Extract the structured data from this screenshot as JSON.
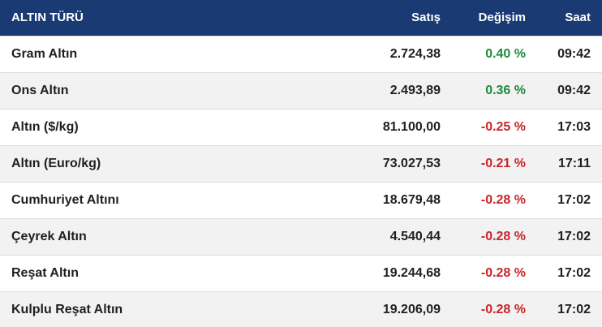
{
  "header": {
    "name_label": "ALTIN TÜRÜ",
    "price_label": "Satış",
    "change_label": "Değişim",
    "time_label": "Saat"
  },
  "colors": {
    "header_bg": "#1a3a73",
    "positive": "#1e8a3e",
    "negative": "#c8252c"
  },
  "rows": [
    {
      "name": "Gram Altın",
      "price": "2.724,38",
      "change": "0.40 %",
      "direction": "up",
      "time": "09:42"
    },
    {
      "name": "Ons Altın",
      "price": "2.493,89",
      "change": "0.36 %",
      "direction": "up",
      "time": "09:42"
    },
    {
      "name": "Altın ($/kg)",
      "price": "81.100,00",
      "change": "-0.25 %",
      "direction": "down",
      "time": "17:03"
    },
    {
      "name": "Altın (Euro/kg)",
      "price": "73.027,53",
      "change": "-0.21 %",
      "direction": "down",
      "time": "17:11"
    },
    {
      "name": "Cumhuriyet Altını",
      "price": "18.679,48",
      "change": "-0.28 %",
      "direction": "down",
      "time": "17:02"
    },
    {
      "name": "Çeyrek Altın",
      "price": "4.540,44",
      "change": "-0.28 %",
      "direction": "down",
      "time": "17:02"
    },
    {
      "name": "Reşat Altın",
      "price": "19.244,68",
      "change": "-0.28 %",
      "direction": "down",
      "time": "17:02"
    },
    {
      "name": "Kulplu Reşat Altın",
      "price": "19.206,09",
      "change": "-0.28 %",
      "direction": "down",
      "time": "17:02"
    }
  ]
}
